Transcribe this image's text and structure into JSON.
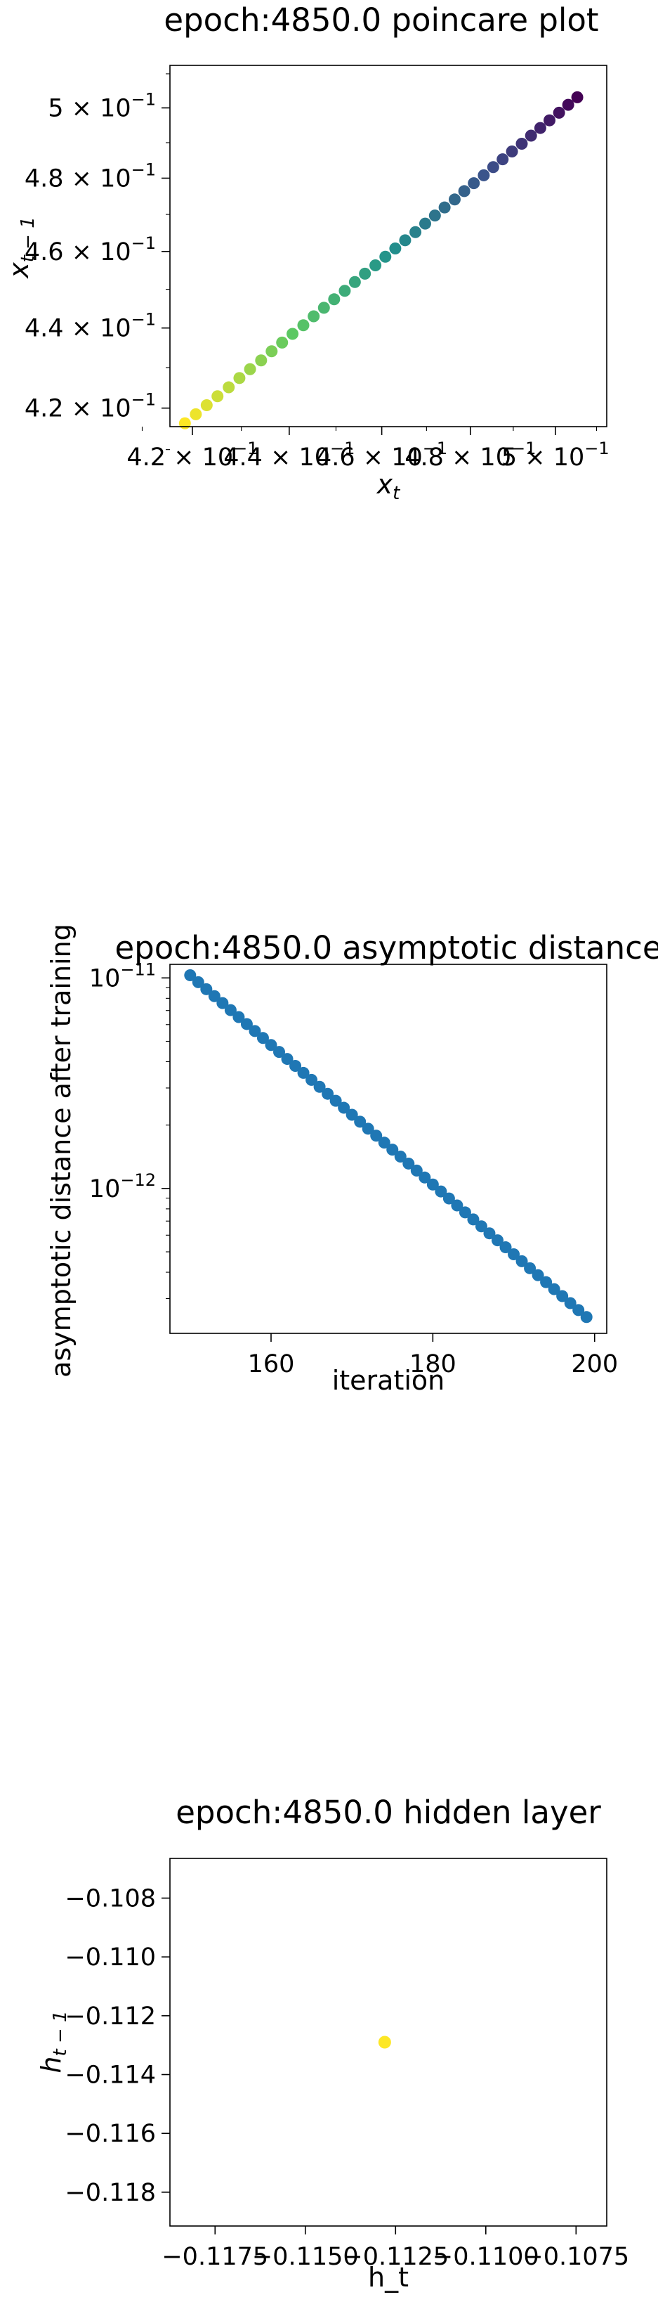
{
  "chart_data": [
    {
      "type": "scatter",
      "title": "epoch:4850.0 poincare plot",
      "xlabel": "x_t",
      "ylabel": "x_{t-1}",
      "xscale": "log",
      "yscale": "log",
      "xlim": [
        0.4155,
        0.5125
      ],
      "ylim": [
        0.4155,
        0.5125
      ],
      "xticks": [
        {
          "value": 0.42,
          "label": "4.2 × 10",
          "exp": "−1"
        },
        {
          "value": 0.44,
          "label": "4.4 × 10",
          "exp": "−1"
        },
        {
          "value": 0.46,
          "label": "4.6 × 10",
          "exp": "−1"
        },
        {
          "value": 0.48,
          "label": "4.8 × 10",
          "exp": "−1"
        },
        {
          "value": 0.5,
          "label": "5 × 10",
          "exp": "−1"
        }
      ],
      "yticks": [
        {
          "value": 0.42,
          "label": "4.2 × 10",
          "exp": "−1"
        },
        {
          "value": 0.44,
          "label": "4.4 × 10",
          "exp": "−1"
        },
        {
          "value": 0.46,
          "label": "4.6 × 10",
          "exp": "−1"
        },
        {
          "value": 0.48,
          "label": "4.8 × 10",
          "exp": "−1"
        },
        {
          "value": 0.5,
          "label": "5 × 10",
          "exp": "−1"
        }
      ],
      "colormap": "viridis",
      "color_note": "points colored from yellow (small x) to dark purple (large x)",
      "x": [
        0.4185,
        0.4207,
        0.4229,
        0.4251,
        0.4274,
        0.4296,
        0.4318,
        0.4341,
        0.4363,
        0.4385,
        0.4407,
        0.443,
        0.4452,
        0.4474,
        0.4496,
        0.4519,
        0.4541,
        0.4563,
        0.4586,
        0.4608,
        0.463,
        0.4652,
        0.4675,
        0.4697,
        0.4719,
        0.4741,
        0.4764,
        0.4786,
        0.4808,
        0.4831,
        0.4853,
        0.4875,
        0.4897,
        0.492,
        0.4942,
        0.4964,
        0.4986,
        0.5009,
        0.5031,
        0.5053
      ],
      "y": [
        0.4163,
        0.4185,
        0.4207,
        0.4229,
        0.4251,
        0.4274,
        0.4296,
        0.4318,
        0.4341,
        0.4363,
        0.4385,
        0.4407,
        0.443,
        0.4452,
        0.4474,
        0.4496,
        0.4519,
        0.4541,
        0.4563,
        0.4586,
        0.4608,
        0.463,
        0.4652,
        0.4675,
        0.4697,
        0.4719,
        0.4741,
        0.4764,
        0.4786,
        0.4808,
        0.4831,
        0.4853,
        0.4875,
        0.4897,
        0.492,
        0.4942,
        0.4964,
        0.4986,
        0.5009,
        0.5031
      ],
      "grid": false
    },
    {
      "type": "scatter",
      "title": "epoch:4850.0 asymptotic distance",
      "xlabel": "iteration",
      "ylabel": "asymptotic distance after training",
      "xscale": "linear",
      "yscale": "log",
      "xlim": [
        147.5,
        201.5
      ],
      "ylim": [
        2.05e-13,
        1.16e-11
      ],
      "xticks": [
        {
          "value": 160,
          "label": "160"
        },
        {
          "value": 180,
          "label": "180"
        },
        {
          "value": 200,
          "label": "200"
        }
      ],
      "yticks": [
        {
          "value": 1e-11,
          "label": "10",
          "exp": "−11"
        },
        {
          "value": 1e-12,
          "label": "10",
          "exp": "−12"
        }
      ],
      "color": "#1f77b4",
      "x_start": 150,
      "x_end": 199,
      "y_start": 1.03e-11,
      "y_end": 2.45e-13,
      "grid": false
    },
    {
      "type": "scatter",
      "title": "epoch:4850.0 hidden layer",
      "xlabel": "h_t",
      "ylabel": "h_{t-1}",
      "xscale": "linear",
      "yscale": "linear",
      "xlim": [
        -0.11875,
        -0.10665
      ],
      "ylim": [
        -0.11915,
        -0.10665
      ],
      "xticks": [
        {
          "value": -0.1175,
          "label": "−0.1175"
        },
        {
          "value": -0.115,
          "label": "−0.1150"
        },
        {
          "value": -0.1125,
          "label": "−0.1125"
        },
        {
          "value": -0.11,
          "label": "−0.1100"
        },
        {
          "value": -0.1075,
          "label": "−0.1075"
        }
      ],
      "yticks": [
        {
          "value": -0.108,
          "label": "−0.108"
        },
        {
          "value": -0.11,
          "label": "−0.110"
        },
        {
          "value": -0.112,
          "label": "−0.112"
        },
        {
          "value": -0.114,
          "label": "−0.114"
        },
        {
          "value": -0.116,
          "label": "−0.116"
        },
        {
          "value": -0.118,
          "label": "−0.118"
        }
      ],
      "points": [
        {
          "x": -0.1128,
          "y": -0.1129
        }
      ],
      "color": "#fde725",
      "grid": false
    }
  ]
}
